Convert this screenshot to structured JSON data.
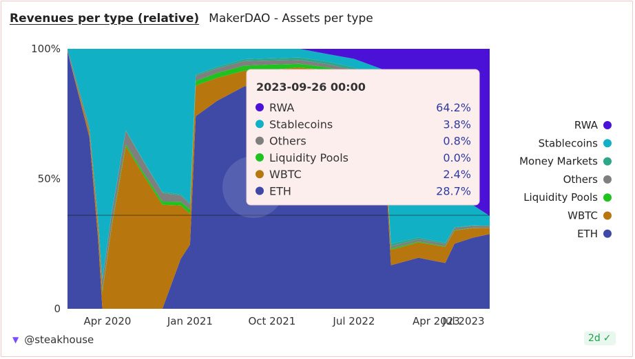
{
  "header": {
    "active_tab": "Revenues per type (relative)",
    "other_tab": "MakerDAO - Assets per type"
  },
  "footer": {
    "author": "@steakhouse",
    "age": "2d"
  },
  "colors": {
    "RWA": "#4b11d6",
    "Stablecoins": "#12b0c4",
    "Money Markets": "#2fa58a",
    "Others": "#7f7f7f",
    "Liquidity Pools": "#1fc21f",
    "WBTC": "#b8760e",
    "ETH": "#3f4aa6"
  },
  "chart_data": {
    "type": "area",
    "stacked": "percent",
    "yticks": [
      "100%",
      "50%",
      "0"
    ],
    "xticks": [
      "Apr 2020",
      "Jan 2021",
      "Oct 2021",
      "Jul 2022",
      "Apr 2023",
      "Jul 2023"
    ],
    "ylim": [
      0,
      100
    ],
    "legend_placement": "right",
    "legend": [
      "RWA",
      "Stablecoins",
      "Money Markets",
      "Others",
      "Liquidity Pools",
      "WBTC",
      "ETH"
    ],
    "series": [
      {
        "name": "ETH",
        "values": [
          {
            "d": "2019-11-20",
            "v": 98
          },
          {
            "d": "2020-02-01",
            "v": 97
          },
          {
            "d": "2020-03-01",
            "v": 25
          },
          {
            "d": "2020-03-15",
            "v": 0
          },
          {
            "d": "2020-04-15",
            "v": 0
          },
          {
            "d": "2020-06-01",
            "v": 0
          },
          {
            "d": "2020-08-01",
            "v": 0
          },
          {
            "d": "2020-10-01",
            "v": 0
          },
          {
            "d": "2020-12-01",
            "v": 20
          },
          {
            "d": "2021-01-01",
            "v": 25
          },
          {
            "d": "2021-01-20",
            "v": 75
          },
          {
            "d": "2021-04-01",
            "v": 85
          },
          {
            "d": "2021-07-01",
            "v": 86
          },
          {
            "d": "2021-10-01",
            "v": 88
          },
          {
            "d": "2022-01-01",
            "v": 89
          },
          {
            "d": "2022-04-01",
            "v": 90
          },
          {
            "d": "2022-07-01",
            "v": 90
          },
          {
            "d": "2022-10-01",
            "v": 85
          },
          {
            "d": "2022-11-01",
            "v": 17
          },
          {
            "d": "2023-02-01",
            "v": 20
          },
          {
            "d": "2023-05-01",
            "v": 17
          },
          {
            "d": "2023-06-01",
            "v": 26
          },
          {
            "d": "2023-08-01",
            "v": 28
          },
          {
            "d": "2023-09-26",
            "v": 28.7
          }
        ]
      },
      {
        "name": "WBTC",
        "values": [
          {
            "d": "2019-11-20",
            "v": 0
          },
          {
            "d": "2020-03-15",
            "v": 5
          },
          {
            "d": "2020-06-01",
            "v": 60
          },
          {
            "d": "2020-10-01",
            "v": 40
          },
          {
            "d": "2021-01-01",
            "v": 12
          },
          {
            "d": "2021-01-20",
            "v": 12
          },
          {
            "d": "2021-07-01",
            "v": 6
          },
          {
            "d": "2022-01-01",
            "v": 4
          },
          {
            "d": "2022-10-01",
            "v": 4
          },
          {
            "d": "2022-11-01",
            "v": 6
          },
          {
            "d": "2023-05-01",
            "v": 6
          },
          {
            "d": "2023-09-26",
            "v": 2.4
          }
        ]
      },
      {
        "name": "Liquidity Pools",
        "values": [
          {
            "d": "2019-11-20",
            "v": 0
          },
          {
            "d": "2021-04-01",
            "v": 2
          },
          {
            "d": "2021-10-01",
            "v": 2
          },
          {
            "d": "2022-04-01",
            "v": 1
          },
          {
            "d": "2022-10-01",
            "v": 0.5
          },
          {
            "d": "2023-09-26",
            "v": 0
          }
        ]
      },
      {
        "name": "Others",
        "values": [
          {
            "d": "2019-11-20",
            "v": 1
          },
          {
            "d": "2020-06-01",
            "v": 5
          },
          {
            "d": "2021-01-01",
            "v": 2
          },
          {
            "d": "2022-10-01",
            "v": 1
          },
          {
            "d": "2023-09-26",
            "v": 0.8
          }
        ]
      },
      {
        "name": "Money Markets",
        "values": [
          {
            "d": "2019-11-20",
            "v": 0
          },
          {
            "d": "2022-01-01",
            "v": 1
          },
          {
            "d": "2022-10-01",
            "v": 1
          },
          {
            "d": "2023-09-26",
            "v": 0
          }
        ]
      },
      {
        "name": "Stablecoins",
        "values": [
          {
            "d": "2019-11-20",
            "v": 0
          },
          {
            "d": "2020-03-15",
            "v": 70
          },
          {
            "d": "2020-06-01",
            "v": 30
          },
          {
            "d": "2020-10-01",
            "v": 55
          },
          {
            "d": "2021-01-01",
            "v": 60
          },
          {
            "d": "2021-01-20",
            "v": 10
          },
          {
            "d": "2021-07-01",
            "v": 4
          },
          {
            "d": "2022-04-01",
            "v": 3
          },
          {
            "d": "2022-10-01",
            "v": 4
          },
          {
            "d": "2022-11-01",
            "v": 30
          },
          {
            "d": "2023-05-01",
            "v": 15
          },
          {
            "d": "2023-09-26",
            "v": 3.8
          }
        ]
      },
      {
        "name": "RWA",
        "values": [
          {
            "d": "2019-11-20",
            "v": 0
          },
          {
            "d": "2022-01-01",
            "v": 0
          },
          {
            "d": "2022-07-01",
            "v": 4
          },
          {
            "d": "2022-10-01",
            "v": 8
          },
          {
            "d": "2022-11-01",
            "v": 46
          },
          {
            "d": "2023-05-01",
            "v": 57
          },
          {
            "d": "2023-09-26",
            "v": 64.2
          }
        ]
      }
    ]
  },
  "tooltip": {
    "title": "2023-09-26 00:00",
    "rows": [
      {
        "label": "RWA",
        "value": "64.2%",
        "series": "RWA"
      },
      {
        "label": "Stablecoins",
        "value": "3.8%",
        "series": "Stablecoins"
      },
      {
        "label": "Others",
        "value": "0.8%",
        "series": "Others"
      },
      {
        "label": "Liquidity Pools",
        "value": "0.0%",
        "series": "Liquidity Pools"
      },
      {
        "label": "WBTC",
        "value": "2.4%",
        "series": "WBTC"
      },
      {
        "label": "ETH",
        "value": "28.7%",
        "series": "ETH"
      }
    ]
  }
}
